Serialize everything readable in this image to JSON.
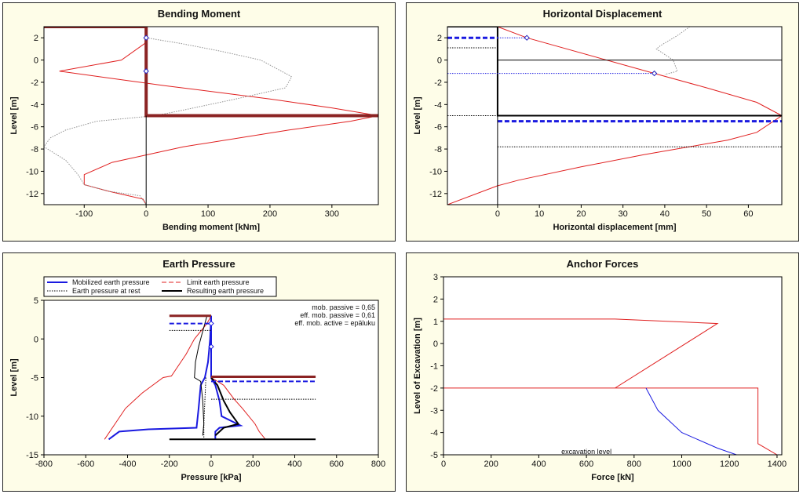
{
  "chart_data": [
    {
      "type": "line",
      "title": "Bending Moment",
      "xlabel": "Bending moment [kNm]",
      "ylabel": "Level [m]",
      "xlim": [
        -165,
        375
      ],
      "ylim": [
        -13,
        3
      ],
      "xticks": [
        -100,
        0,
        100,
        200,
        300
      ],
      "yticks": [
        2,
        0,
        -2,
        -4,
        -6,
        -8,
        -10,
        -12
      ],
      "series": [
        {
          "color": "#e02020",
          "style": "solid",
          "width": 1,
          "points": [
            [
              0,
              3
            ],
            [
              -2,
              1.5
            ],
            [
              -40,
              0
            ],
            [
              -140,
              -1
            ],
            [
              30,
              -2.3
            ],
            [
              200,
              -3.5
            ],
            [
              300,
              -4.3
            ],
            [
              375,
              -5
            ],
            [
              330,
              -5.5
            ],
            [
              230,
              -6.3
            ],
            [
              60,
              -7.8
            ],
            [
              -55,
              -9.2
            ],
            [
              -100,
              -10.3
            ],
            [
              -100,
              -11.2
            ],
            [
              -60,
              -11.8
            ],
            [
              -5,
              -12.5
            ],
            [
              0,
              -13
            ]
          ]
        },
        {
          "color": "#909090",
          "style": "dotted",
          "width": 1,
          "points": [
            [
              0,
              2
            ],
            [
              55,
              1.5
            ],
            [
              120,
              0.8
            ],
            [
              185,
              0
            ],
            [
              235,
              -1.5
            ],
            [
              225,
              -2.5
            ],
            [
              145,
              -3.5
            ],
            [
              60,
              -4.5
            ],
            [
              15,
              -5
            ],
            [
              -80,
              -5.5
            ],
            [
              -130,
              -6.3
            ],
            [
              -155,
              -7
            ],
            [
              -165,
              -7.8
            ],
            [
              -130,
              -9
            ],
            [
              -110,
              -10.3
            ],
            [
              -100,
              -11.2
            ],
            [
              -60,
              -11.8
            ],
            [
              -10,
              -12.2
            ],
            [
              0,
              -13
            ]
          ]
        },
        {
          "color": "#8b2323",
          "style": "solid",
          "width": 4,
          "points": [
            [
              -165,
              3
            ],
            [
              0,
              3
            ],
            [
              0,
              -5
            ],
            [
              375,
              -5
            ]
          ]
        },
        {
          "color": "#000000",
          "style": "solid",
          "width": 1,
          "points": [
            [
              0,
              -5
            ],
            [
              0,
              -13
            ]
          ]
        }
      ],
      "markers": [
        [
          0,
          2
        ],
        [
          0,
          -1
        ]
      ],
      "marker_color": "#2020c0"
    },
    {
      "type": "line",
      "title": "Horizontal Displacement",
      "xlabel": "Horizontal displacement [mm]",
      "ylabel": "Level [m]",
      "xlim": [
        -12,
        68
      ],
      "ylim": [
        -13,
        3
      ],
      "xticks": [
        0,
        10,
        20,
        30,
        40,
        50,
        60
      ],
      "yticks": [
        2,
        0,
        -2,
        -4,
        -6,
        -8,
        -10,
        -12
      ],
      "series": [
        {
          "color": "#e02020",
          "style": "solid",
          "width": 1,
          "points": [
            [
              0,
              3
            ],
            [
              7,
              2
            ],
            [
              37.5,
              -1.2
            ],
            [
              50,
              -2.5
            ],
            [
              62,
              -3.8
            ],
            [
              68,
              -5
            ],
            [
              62,
              -6.5
            ],
            [
              55,
              -7.2
            ],
            [
              35,
              -8.5
            ],
            [
              20,
              -9.6
            ],
            [
              5,
              -10.8
            ],
            [
              0,
              -11.3
            ],
            [
              -12,
              -13
            ]
          ]
        },
        {
          "color": "#909090",
          "style": "dotted",
          "width": 1,
          "points": [
            [
              46,
              3
            ],
            [
              43,
              2.2
            ],
            [
              39,
              1.3
            ],
            [
              38,
              1
            ],
            [
              42,
              0
            ],
            [
              43,
              -1
            ],
            [
              40,
              -1.3
            ]
          ]
        },
        {
          "color": "#000000",
          "style": "solid",
          "width": 2,
          "points": [
            [
              -12,
              3
            ],
            [
              0,
              3
            ],
            [
              0,
              -5
            ],
            [
              68,
              -5
            ]
          ]
        },
        {
          "color": "#1a1ae0",
          "style": "dashed",
          "width": 3,
          "points": [
            [
              -12,
              2
            ],
            [
              0,
              2
            ]
          ]
        },
        {
          "color": "#1a1ae0",
          "style": "dashed",
          "width": 3,
          "points": [
            [
              0,
              -5.5
            ],
            [
              68,
              -5.5
            ]
          ]
        },
        {
          "color": "#1a1ae0",
          "style": "dotted",
          "width": 1,
          "points": [
            [
              0,
              2
            ],
            [
              7,
              2
            ]
          ]
        },
        {
          "color": "#1a1ae0",
          "style": "dotted",
          "width": 1,
          "points": [
            [
              -12,
              -1.2
            ],
            [
              37.5,
              -1.2
            ]
          ]
        },
        {
          "color": "#000000",
          "style": "dotted",
          "width": 1,
          "points": [
            [
              -12,
              1.1
            ],
            [
              0,
              1.1
            ]
          ]
        },
        {
          "color": "#000000",
          "style": "dotted",
          "width": 1,
          "points": [
            [
              0,
              -7.8
            ],
            [
              68,
              -7.8
            ]
          ]
        },
        {
          "color": "#000000",
          "style": "dotted",
          "width": 1,
          "points": [
            [
              -12,
              -5
            ],
            [
              0,
              -5
            ]
          ]
        },
        {
          "color": "#000000",
          "style": "solid",
          "width": 1,
          "points": [
            [
              0,
              0
            ],
            [
              68,
              0
            ]
          ]
        },
        {
          "color": "#000000",
          "style": "solid",
          "width": 1,
          "points": [
            [
              0,
              -5
            ],
            [
              0,
              -13
            ]
          ]
        }
      ],
      "markers": [
        [
          7,
          2
        ],
        [
          37.5,
          -1.2
        ]
      ],
      "marker_color": "#2020c0"
    },
    {
      "type": "line",
      "title": "Earth Pressure",
      "xlabel": "Pressure [kPa]",
      "ylabel": "Level [m]",
      "xlim": [
        -800,
        800
      ],
      "ylim": [
        -15,
        5
      ],
      "xticks": [
        -800,
        -600,
        -400,
        -200,
        0,
        200,
        400,
        600,
        800
      ],
      "yticks": [
        5,
        0,
        -5,
        -10,
        -15
      ],
      "legend": [
        {
          "label": "Mobilized earth pressure",
          "color": "#1a1ae0",
          "style": "solid",
          "width": 2
        },
        {
          "label": "Limit earth pressure",
          "color": "#e02020",
          "style": "dashed",
          "width": 1
        },
        {
          "label": "Earth pressure at rest",
          "color": "#000000",
          "style": "dotted",
          "width": 1
        },
        {
          "label": "Resulting earth pressure",
          "color": "#000000",
          "style": "solid",
          "width": 2
        }
      ],
      "annotations": [
        "mob. passive = 0,65",
        "eff. mob. passive = 0,61",
        "eff. mob. active = epäluku"
      ],
      "series": [
        {
          "color": "#e02020",
          "style": "solid",
          "width": 1,
          "points": [
            [
              0,
              3
            ],
            [
              -20,
              2
            ],
            [
              -80,
              0
            ],
            [
              -120,
              -2
            ],
            [
              -170,
              -4
            ],
            [
              -190,
              -4.8
            ],
            [
              -230,
              -5
            ],
            [
              -330,
              -7
            ],
            [
              -410,
              -9
            ],
            [
              -460,
              -11
            ],
            [
              -510,
              -13
            ]
          ]
        },
        {
          "color": "#e02020",
          "style": "solid",
          "width": 1,
          "points": [
            [
              0,
              -5
            ],
            [
              60,
              -6
            ],
            [
              110,
              -7.8
            ],
            [
              150,
              -9
            ],
            [
              210,
              -11
            ],
            [
              230,
              -12
            ],
            [
              260,
              -13
            ]
          ]
        },
        {
          "color": "#1a1ae0",
          "style": "solid",
          "width": 2,
          "points": [
            [
              -490,
              -13
            ],
            [
              -440,
              -12
            ],
            [
              -300,
              -11.7
            ],
            [
              -70,
              -11.5
            ],
            [
              -60,
              -9
            ],
            [
              -50,
              -6
            ],
            [
              -30,
              -5
            ],
            [
              -15,
              -3
            ],
            [
              -5,
              0
            ],
            [
              0,
              3
            ]
          ]
        },
        {
          "color": "#1a1ae0",
          "style": "solid",
          "width": 2,
          "points": [
            [
              0,
              -5
            ],
            [
              20,
              -6
            ],
            [
              40,
              -8
            ],
            [
              50,
              -10
            ],
            [
              140,
              -11.2
            ],
            [
              40,
              -11.5
            ],
            [
              20,
              -12
            ],
            [
              20,
              -13
            ]
          ]
        },
        {
          "color": "#000000",
          "style": "solid",
          "width": 1,
          "points": [
            [
              -20,
              3
            ],
            [
              -40,
              1
            ],
            [
              -60,
              -1
            ],
            [
              -75,
              -3
            ],
            [
              -80,
              -5
            ],
            [
              -50,
              -5.5
            ],
            [
              -40,
              -8
            ],
            [
              -35,
              -11
            ],
            [
              -40,
              -12.5
            ]
          ]
        },
        {
          "color": "#000000",
          "style": "solid",
          "width": 2,
          "points": [
            [
              0,
              -5
            ],
            [
              30,
              -6
            ],
            [
              60,
              -8
            ],
            [
              90,
              -9.5
            ],
            [
              130,
              -11
            ],
            [
              60,
              -11.5
            ],
            [
              20,
              -12.5
            ]
          ]
        },
        {
          "color": "#000000",
          "style": "dotted",
          "width": 1,
          "points": [
            [
              -25,
              -5
            ],
            [
              -30,
              -8
            ],
            [
              -35,
              -11
            ],
            [
              -35,
              -13
            ]
          ]
        },
        {
          "color": "#1a1ae0",
          "style": "solid",
          "width": 2,
          "points": [
            [
              0,
              3
            ],
            [
              0,
              -5
            ]
          ]
        },
        {
          "color": "#8b2323",
          "style": "solid",
          "width": 3,
          "points": [
            [
              -200,
              3
            ],
            [
              0,
              3
            ]
          ]
        },
        {
          "color": "#8b2323",
          "style": "solid",
          "width": 3,
          "points": [
            [
              0,
              -4.9
            ],
            [
              500,
              -4.9
            ]
          ]
        },
        {
          "color": "#1a1ae0",
          "style": "dashed",
          "width": 2,
          "points": [
            [
              -200,
              2
            ],
            [
              0,
              2
            ]
          ]
        },
        {
          "color": "#1a1ae0",
          "style": "dashed",
          "width": 2,
          "points": [
            [
              0,
              -5.5
            ],
            [
              500,
              -5.5
            ]
          ]
        },
        {
          "color": "#000000",
          "style": "dotted",
          "width": 1,
          "points": [
            [
              -200,
              1.1
            ],
            [
              0,
              1.1
            ]
          ]
        },
        {
          "color": "#000000",
          "style": "dotted",
          "width": 1,
          "points": [
            [
              0,
              -7.8
            ],
            [
              500,
              -7.8
            ]
          ]
        },
        {
          "color": "#000000",
          "style": "solid",
          "width": 2,
          "points": [
            [
              -200,
              -13
            ],
            [
              500,
              -13
            ]
          ]
        }
      ],
      "markers": [
        [
          0,
          2
        ],
        [
          0,
          -1
        ]
      ],
      "marker_color": "#1a1ae0"
    },
    {
      "type": "line",
      "title": "Anchor Forces",
      "xlabel": "Force [kN]",
      "ylabel": "Level of Excavation [m]",
      "xlim": [
        0,
        1420
      ],
      "ylim": [
        -5,
        3
      ],
      "xticks": [
        0,
        200,
        400,
        600,
        800,
        1000,
        1200,
        1400
      ],
      "yticks": [
        3,
        2,
        1,
        0,
        -1,
        -2,
        -3,
        -4,
        -5
      ],
      "bottom_label": "excavation level",
      "series": [
        {
          "color": "#e02020",
          "style": "solid",
          "width": 1,
          "points": [
            [
              0,
              3
            ],
            [
              0,
              1.1
            ],
            [
              720,
              1.1
            ],
            [
              1150,
              0.9
            ],
            [
              720,
              -2
            ],
            [
              0,
              -2
            ],
            [
              1320,
              -2
            ],
            [
              1320,
              -4.5
            ],
            [
              1400,
              -5
            ]
          ]
        },
        {
          "color": "#1a1ae0",
          "style": "solid",
          "width": 1,
          "points": [
            [
              0,
              1.1
            ],
            [
              0,
              -2
            ]
          ]
        },
        {
          "color": "#1a1ae0",
          "style": "solid",
          "width": 1,
          "points": [
            [
              850,
              -2
            ],
            [
              900,
              -3
            ],
            [
              1000,
              -4
            ],
            [
              1150,
              -4.7
            ],
            [
              1230,
              -5
            ]
          ]
        }
      ],
      "markers": [],
      "marker_color": "#1a1ae0"
    }
  ]
}
